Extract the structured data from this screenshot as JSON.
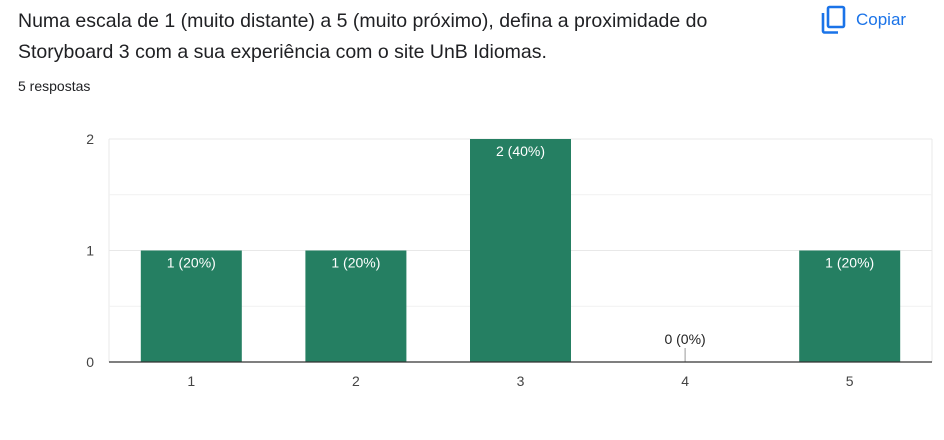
{
  "question": {
    "title": "Numa escala de 1 (muito distante) a 5 (muito próximo), defina a proximidade do Storyboard 3 com a sua experiência com o site UnB Idiomas.",
    "responses": "5 respostas"
  },
  "copy_button": {
    "label": "Copiar",
    "icon": "copy-icon"
  },
  "colors": {
    "bar": "#257f62",
    "accent": "#1a73e8",
    "grid": "#e8e8e8",
    "axis": "#333333"
  },
  "chart_data": {
    "type": "bar",
    "categories": [
      "1",
      "2",
      "3",
      "4",
      "5"
    ],
    "values": [
      1,
      1,
      2,
      0,
      1
    ],
    "data_labels": [
      "1 (20%)",
      "1 (20%)",
      "2 (40%)",
      "0 (0%)",
      "1 (20%)"
    ],
    "y_ticks": [
      "0",
      "1",
      "2"
    ],
    "ylim": [
      0,
      2
    ],
    "grid": true,
    "title": "",
    "xlabel": "",
    "ylabel": ""
  }
}
